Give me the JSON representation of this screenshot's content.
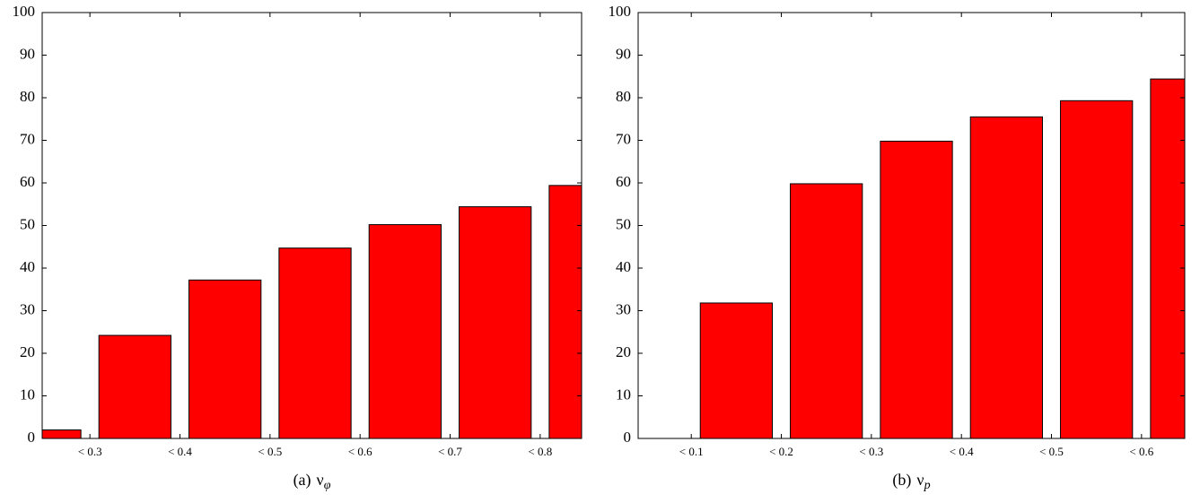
{
  "chart_data": [
    {
      "type": "bar",
      "caption_label": "(a)",
      "caption_symbol": "ν",
      "caption_subscript": "φ",
      "x": [
        1,
        2,
        3,
        4,
        5,
        6,
        7
      ],
      "values": [
        2,
        24.2,
        37.2,
        44.7,
        50.2,
        54.4,
        59.4
      ],
      "color": "#ff0000",
      "xlim": [
        0.97,
        6.96
      ],
      "xticks": [
        {
          "value": 1.5,
          "label": "< 0.3"
        },
        {
          "value": 2.5,
          "label": "< 0.4"
        },
        {
          "value": 3.5,
          "label": "< 0.5"
        },
        {
          "value": 4.5,
          "label": "< 0.6"
        },
        {
          "value": 5.5,
          "label": "< 0.7"
        },
        {
          "value": 6.5,
          "label": "< 0.8"
        }
      ],
      "ylim": [
        0,
        100
      ],
      "yticks": [
        0,
        10,
        20,
        30,
        40,
        50,
        60,
        70,
        80,
        90,
        100
      ]
    },
    {
      "type": "bar",
      "caption_label": "(b)",
      "caption_symbol": "ν",
      "caption_subscript": "p",
      "x": [
        1,
        2,
        3,
        4,
        5,
        6,
        7
      ],
      "values": [
        0,
        31.8,
        59.8,
        69.8,
        75.5,
        79.3,
        84.4
      ],
      "color": "#ff0000",
      "xlim": [
        0.91,
        6.98
      ],
      "xticks": [
        {
          "value": 1.5,
          "label": "< 0.1"
        },
        {
          "value": 2.5,
          "label": "< 0.2"
        },
        {
          "value": 3.5,
          "label": "< 0.3"
        },
        {
          "value": 4.5,
          "label": "< 0.4"
        },
        {
          "value": 5.5,
          "label": "< 0.5"
        },
        {
          "value": 6.5,
          "label": "< 0.6"
        }
      ],
      "ylim": [
        0,
        100
      ],
      "yticks": [
        0,
        10,
        20,
        30,
        40,
        50,
        60,
        70,
        80,
        90,
        100
      ]
    }
  ]
}
